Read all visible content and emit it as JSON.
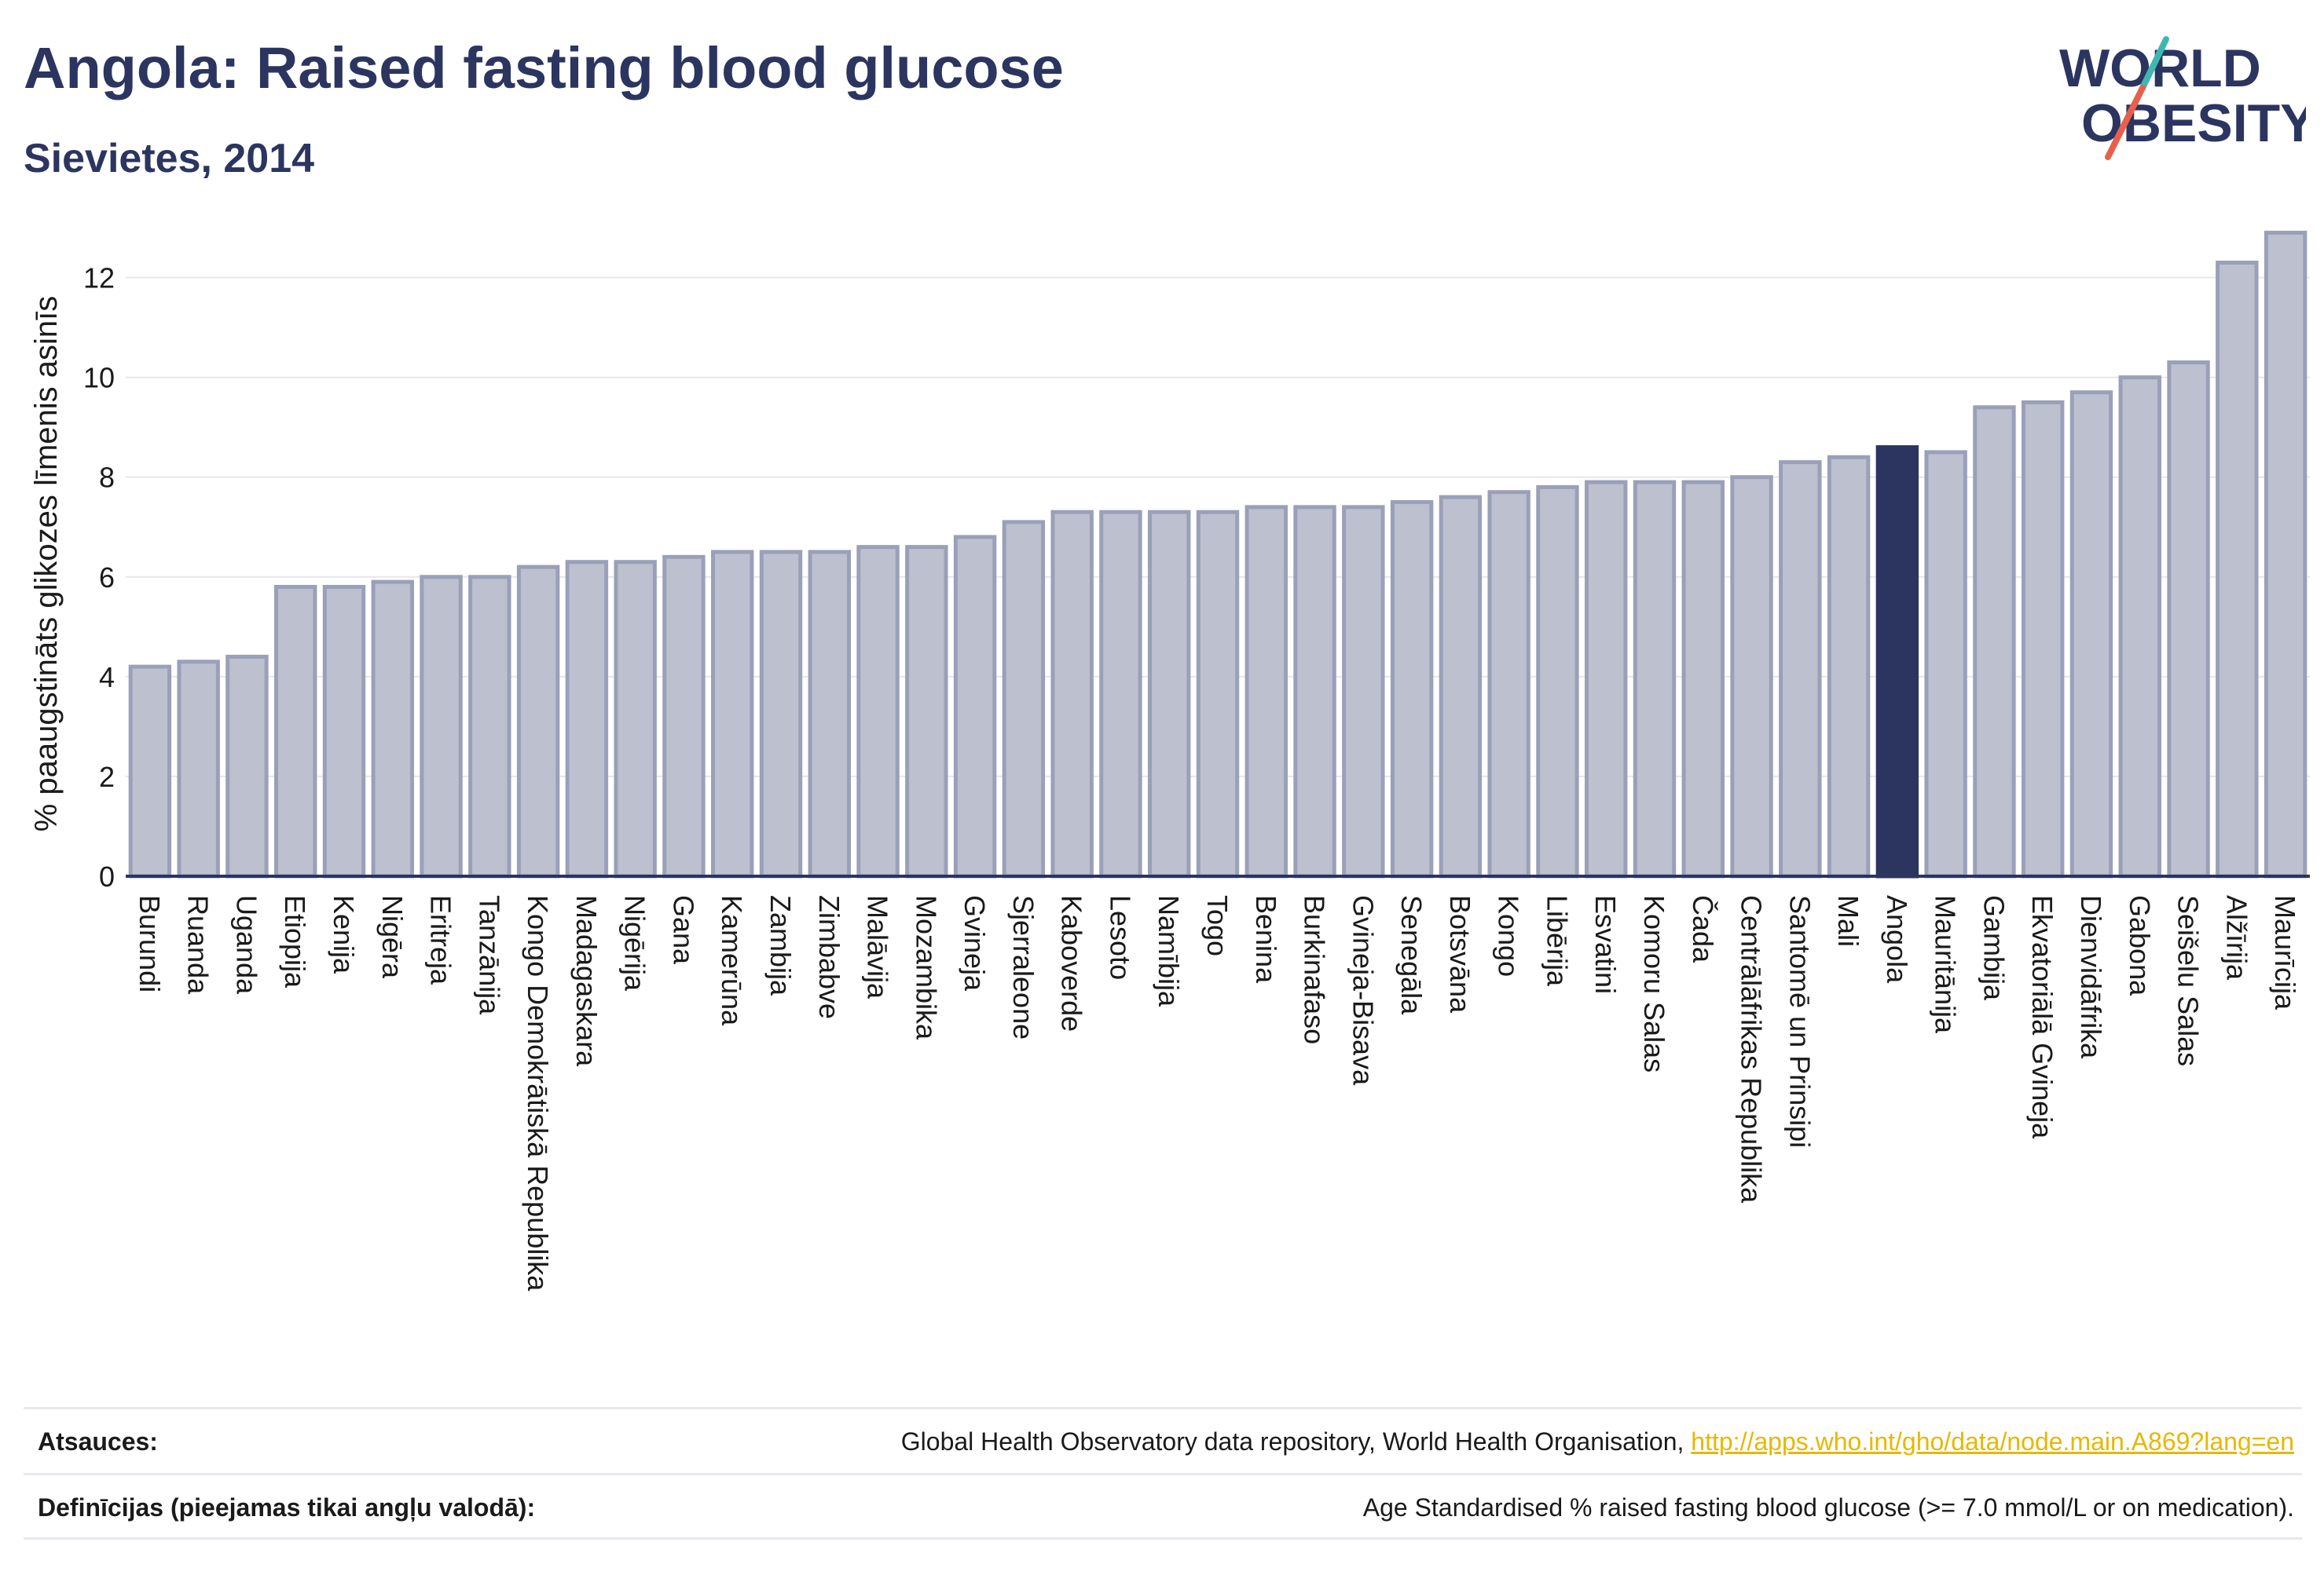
{
  "header": {
    "title": "Angola: Raised fasting blood glucose",
    "subtitle": "Sievietes, 2014"
  },
  "logo": {
    "line1": "WORLD",
    "line2": "OBESITY"
  },
  "colors": {
    "bar": "#bcc0cf",
    "bar_stroke": "#9aa0b8",
    "highlight": "#2b3560",
    "text": "#2b3560",
    "link": "#e6b800",
    "logo_slash_teal": "#3fb7b0",
    "logo_slash_red": "#e8604c"
  },
  "chart_data": {
    "type": "bar",
    "title": "Angola: Raised fasting blood glucose",
    "subtitle": "Sievietes, 2014",
    "ylabel": "% paaugstināts glikozes līmenis asinīs",
    "xlabel": "",
    "ylim": [
      0,
      13
    ],
    "yticks": [
      0,
      2,
      4,
      6,
      8,
      10,
      12
    ],
    "grid": true,
    "highlight": "Angola",
    "categories": [
      "Burundi",
      "Ruanda",
      "Uganda",
      "Etiopija",
      "Kenija",
      "Nigēra",
      "Eritreja",
      "Tanzānija",
      "Kongo Demokrātiskā Republika",
      "Madagaskara",
      "Nigērija",
      "Gana",
      "Kamerūna",
      "Zambija",
      "Zimbabve",
      "Malāvija",
      "Mozambika",
      "Gvineja",
      "Sjerraleone",
      "Kaboverde",
      "Lesoto",
      "Namībija",
      "Togo",
      "Benina",
      "Burkinafaso",
      "Gvineja-Bisava",
      "Senegāla",
      "Botsvāna",
      "Kongo",
      "Libērija",
      "Esvatini",
      "Komoru Salas",
      "Čada",
      "Centrālāfrikas Republika",
      "Santomē un Prinsipi",
      "Mali",
      "Angola",
      "Mauritānija",
      "Gambija",
      "Ekvatoriālā Gvineja",
      "Dienvidāfrika",
      "Gabona",
      "Seišelu Salas",
      "Alžīrija",
      "Maurīcija"
    ],
    "values": [
      4.2,
      4.3,
      4.4,
      5.8,
      5.8,
      5.9,
      6.0,
      6.0,
      6.2,
      6.3,
      6.3,
      6.4,
      6.5,
      6.5,
      6.5,
      6.6,
      6.6,
      6.8,
      7.1,
      7.3,
      7.3,
      7.3,
      7.3,
      7.4,
      7.4,
      7.4,
      7.5,
      7.6,
      7.7,
      7.8,
      7.9,
      7.9,
      7.9,
      8.0,
      8.3,
      8.4,
      8.6,
      8.5,
      9.4,
      9.5,
      9.7,
      10.0,
      10.3,
      12.3,
      12.9
    ]
  },
  "footer": {
    "sources_label": "Atsauces:",
    "sources_text": "Global Health Observatory data repository, World Health Organisation,",
    "sources_link": "http://apps.who.int/gho/data/node.main.A869?lang=en",
    "definitions_label": "Definīcijas (pieejamas tikai angļu valodā):",
    "definitions_text": "Age Standardised % raised fasting blood glucose (>= 7.0 mmol/L or on medication)."
  }
}
